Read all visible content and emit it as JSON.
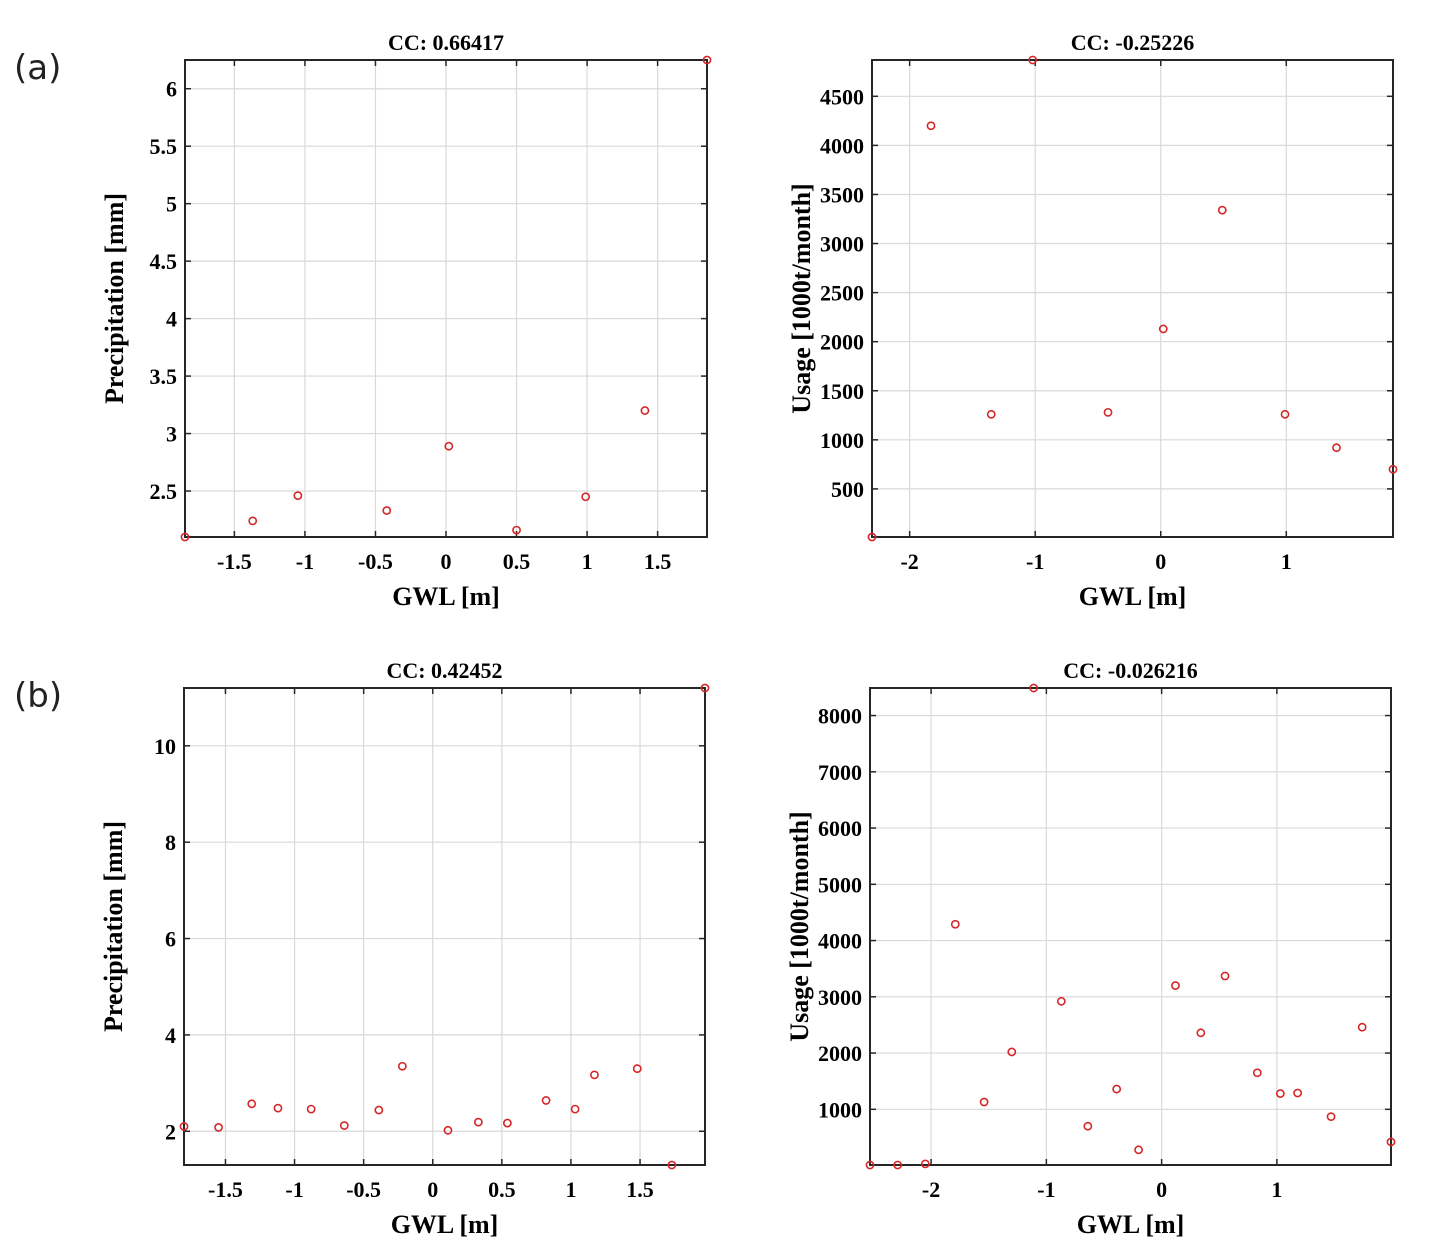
{
  "panel_labels": [
    "(a)",
    "(b)"
  ],
  "chart_data": [
    {
      "type": "scatter",
      "title": "CC: 0.66417",
      "xlabel": "GWL [m]",
      "ylabel": "Precipitation [mm]",
      "xlim": [
        -1.85,
        1.85
      ],
      "ylim": [
        2.1,
        6.25
      ],
      "xticks": [
        -1.5,
        -1,
        -0.5,
        0,
        0.5,
        1,
        1.5
      ],
      "xtick_labels": [
        "-1.5",
        "-1",
        "-0.5",
        "0",
        "0.5",
        "1",
        "1.5"
      ],
      "yticks": [
        2.5,
        3,
        3.5,
        4,
        4.5,
        5,
        5.5,
        6
      ],
      "ytick_labels": [
        "2.5",
        "3",
        "3.5",
        "4",
        "4.5",
        "5",
        "5.5",
        "6"
      ],
      "grid": true,
      "marker_color": "#d62728",
      "x": [
        -1.85,
        -1.37,
        -1.05,
        -0.42,
        0.02,
        0.5,
        0.99,
        1.41,
        1.85
      ],
      "y": [
        2.1,
        2.24,
        2.46,
        2.33,
        2.89,
        2.16,
        2.45,
        3.2,
        6.25
      ]
    },
    {
      "type": "scatter",
      "title": "CC: -0.25226",
      "xlabel": "GWL [m]",
      "ylabel": "Usage [1000t/month]",
      "xlim": [
        -2.3,
        1.85
      ],
      "ylim": [
        10,
        4870
      ],
      "xticks": [
        -2,
        -1,
        0,
        1
      ],
      "xtick_labels": [
        "-2",
        "-1",
        "0",
        "1"
      ],
      "yticks": [
        500,
        1000,
        1500,
        2000,
        2500,
        3000,
        3500,
        4000,
        4500
      ],
      "ytick_labels": [
        "500",
        "1000",
        "1500",
        "2000",
        "2500",
        "3000",
        "3500",
        "4000",
        "4500"
      ],
      "grid": true,
      "marker_color": "#d62728",
      "x": [
        -2.3,
        -1.83,
        -1.35,
        -1.02,
        -0.42,
        0.02,
        0.49,
        0.99,
        1.4,
        1.85
      ],
      "y": [
        10,
        4200,
        1260,
        4870,
        1280,
        2130,
        3340,
        1260,
        920,
        700
      ]
    },
    {
      "type": "scatter",
      "title": "CC: 0.42452",
      "xlabel": "GWL [m]",
      "ylabel": "Precipitation [mm]",
      "xlim": [
        -1.8,
        1.97
      ],
      "ylim": [
        1.3,
        11.2
      ],
      "xticks": [
        -1.5,
        -1,
        -0.5,
        0,
        0.5,
        1,
        1.5
      ],
      "xtick_labels": [
        "-1.5",
        "-1",
        "-0.5",
        "0",
        "0.5",
        "1",
        "1.5"
      ],
      "yticks": [
        2,
        4,
        6,
        8,
        10
      ],
      "ytick_labels": [
        "2",
        "4",
        "6",
        "8",
        "10"
      ],
      "grid": true,
      "marker_color": "#d62728",
      "x": [
        -1.8,
        -1.55,
        -1.31,
        -1.12,
        -0.88,
        -0.64,
        -0.39,
        -0.22,
        0.11,
        0.33,
        0.54,
        0.82,
        1.03,
        1.17,
        1.48,
        1.73,
        1.97
      ],
      "y": [
        2.1,
        2.08,
        2.57,
        2.48,
        2.46,
        2.12,
        2.44,
        3.35,
        2.02,
        2.19,
        2.17,
        2.64,
        2.46,
        3.17,
        3.3,
        1.3,
        11.2
      ]
    },
    {
      "type": "scatter",
      "title": "CC: -0.026216",
      "xlabel": "GWL [m]",
      "ylabel": "Usage [1000t/month]",
      "xlim": [
        -2.53,
        1.99
      ],
      "ylim": [
        10,
        8490
      ],
      "xticks": [
        -2,
        -1,
        0,
        1
      ],
      "xtick_labels": [
        "-2",
        "-1",
        "0",
        "1"
      ],
      "yticks": [
        1000,
        2000,
        3000,
        4000,
        5000,
        6000,
        7000,
        8000
      ],
      "ytick_labels": [
        "1000",
        "2000",
        "3000",
        "4000",
        "5000",
        "6000",
        "7000",
        "8000"
      ],
      "grid": true,
      "marker_color": "#d62728",
      "x": [
        -2.53,
        -2.29,
        -2.05,
        -1.79,
        -1.54,
        -1.3,
        -1.11,
        -0.87,
        -0.64,
        -0.39,
        -0.2,
        0.12,
        0.34,
        0.55,
        0.83,
        1.03,
        1.18,
        1.47,
        1.74,
        1.99
      ],
      "y": [
        10,
        10,
        30,
        4290,
        1130,
        2020,
        8490,
        2920,
        700,
        1360,
        280,
        3200,
        2360,
        3370,
        1650,
        1280,
        1290,
        870,
        2460,
        420
      ]
    }
  ]
}
